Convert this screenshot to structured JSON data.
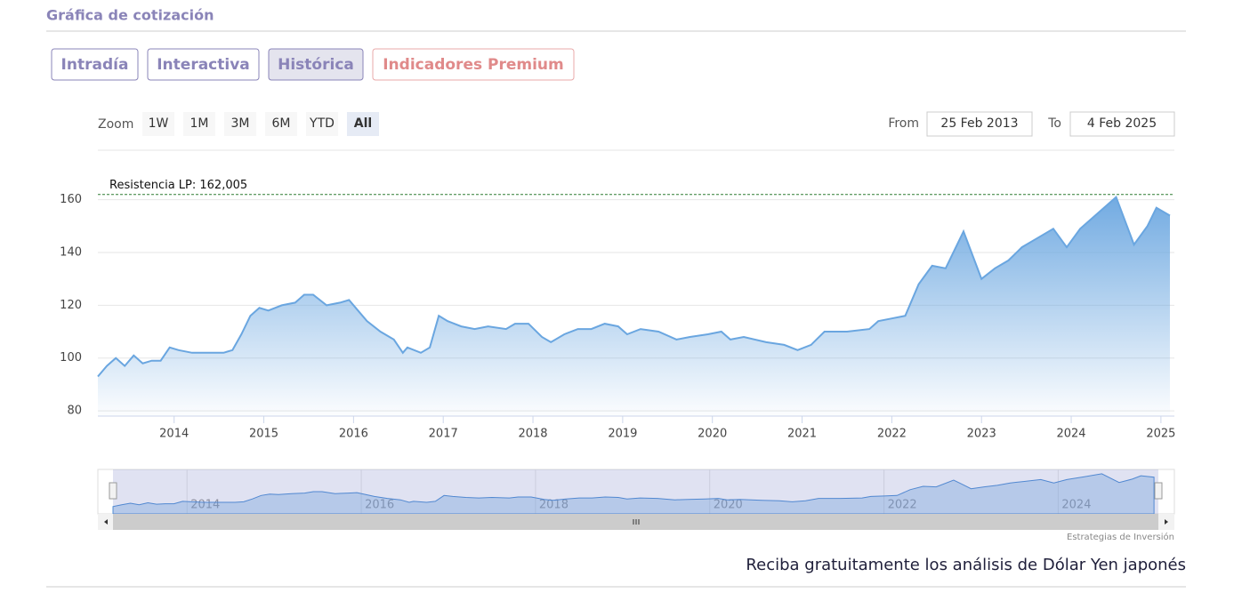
{
  "header": {
    "title": "Gráfica de cotización"
  },
  "tabs": [
    "Intradía",
    "Interactiva",
    "Histórica",
    "Indicadores Premium"
  ],
  "zoom": {
    "label": "Zoom",
    "buttons": [
      "1W",
      "1M",
      "3M",
      "6M",
      "YTD",
      "All"
    ]
  },
  "range": {
    "from_label": "From",
    "from": "25 Feb 2013",
    "to_label": "To",
    "to": "4 Feb 2025"
  },
  "chart_data": {
    "type": "area",
    "x": [
      2013.15,
      2013.25,
      2013.35,
      2013.45,
      2013.55,
      2013.65,
      2013.75,
      2013.85,
      2013.95,
      2014.05,
      2014.2,
      2014.4,
      2014.55,
      2014.65,
      2014.75,
      2014.85,
      2014.95,
      2015.05,
      2015.2,
      2015.35,
      2015.45,
      2015.55,
      2015.7,
      2015.85,
      2015.95,
      2016.05,
      2016.15,
      2016.3,
      2016.45,
      2016.55,
      2016.6,
      2016.75,
      2016.85,
      2016.95,
      2017.05,
      2017.2,
      2017.35,
      2017.5,
      2017.7,
      2017.8,
      2017.95,
      2018.1,
      2018.2,
      2018.35,
      2018.5,
      2018.65,
      2018.8,
      2018.95,
      2019.05,
      2019.2,
      2019.4,
      2019.6,
      2019.75,
      2019.95,
      2020.1,
      2020.2,
      2020.35,
      2020.6,
      2020.8,
      2020.95,
      2021.1,
      2021.25,
      2021.5,
      2021.75,
      2021.85,
      2022.0,
      2022.15,
      2022.3,
      2022.45,
      2022.6,
      2022.8,
      2022.9,
      2023.0,
      2023.15,
      2023.3,
      2023.45,
      2023.6,
      2023.8,
      2023.95,
      2024.1,
      2024.3,
      2024.5,
      2024.7,
      2024.85,
      2024.95,
      2025.1
    ],
    "values": [
      93,
      97,
      100,
      97,
      101,
      98,
      99,
      99,
      104,
      103,
      102,
      102,
      102,
      103,
      109,
      116,
      119,
      118,
      120,
      121,
      124,
      124,
      120,
      121,
      122,
      118,
      114,
      110,
      107,
      102,
      104,
      102,
      104,
      116,
      114,
      112,
      111,
      112,
      111,
      113,
      113,
      108,
      106,
      109,
      111,
      111,
      113,
      112,
      109,
      111,
      110,
      107,
      108,
      109,
      110,
      107,
      108,
      106,
      105,
      103,
      105,
      110,
      110,
      111,
      114,
      115,
      116,
      128,
      135,
      134,
      148,
      139,
      130,
      134,
      137,
      142,
      145,
      149,
      142,
      149,
      155,
      161,
      143,
      150,
      157,
      154
    ],
    "color": "#6aa6e0",
    "xlim": [
      2013.15,
      2025.15
    ],
    "ylim": [
      78,
      170
    ],
    "xticks": [
      2014,
      2015,
      2016,
      2017,
      2018,
      2019,
      2020,
      2021,
      2022,
      2023,
      2024,
      2025
    ],
    "yticks": [
      80,
      100,
      120,
      140,
      160
    ],
    "grid": true,
    "annotation": {
      "value": 162.005,
      "label": "Resistencia LP: 162,005"
    }
  },
  "navigator": {
    "xticks": [
      2014,
      2016,
      2018,
      2020,
      2022,
      2024
    ]
  },
  "credit": "Estrategias de Inversión",
  "footer": "Reciba gratuitamente los análisis de Dólar Yen japonés"
}
